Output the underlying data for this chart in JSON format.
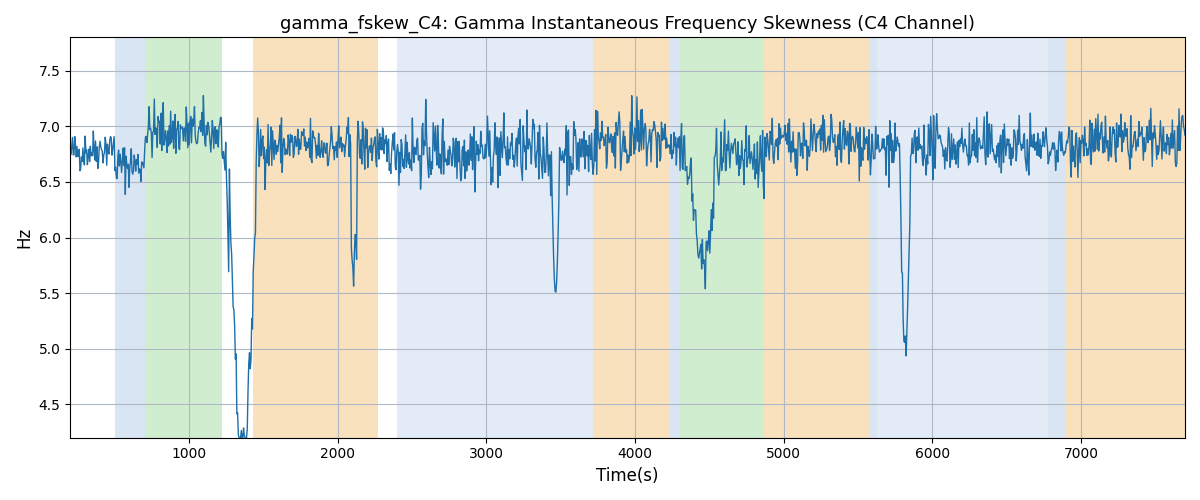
{
  "title": "gamma_fskew_C4: Gamma Instantaneous Frequency Skewness (C4 Channel)",
  "xlabel": "Time(s)",
  "ylabel": "Hz",
  "xlim": [
    200,
    7700
  ],
  "ylim": [
    4.2,
    7.8
  ],
  "yticks": [
    4.5,
    5.0,
    5.5,
    6.0,
    6.5,
    7.0,
    7.5
  ],
  "xticks": [
    1000,
    2000,
    3000,
    4000,
    5000,
    6000,
    7000
  ],
  "bg_bands": [
    {
      "xmin": 500,
      "xmax": 700,
      "color": "#aec6e8",
      "alpha": 0.45
    },
    {
      "xmin": 700,
      "xmax": 1220,
      "color": "#98d898",
      "alpha": 0.45
    },
    {
      "xmin": 1430,
      "xmax": 2270,
      "color": "#f5c98a",
      "alpha": 0.55
    },
    {
      "xmin": 2400,
      "xmax": 3720,
      "color": "#aec6e8",
      "alpha": 0.35
    },
    {
      "xmin": 3720,
      "xmax": 4230,
      "color": "#f5c98a",
      "alpha": 0.55
    },
    {
      "xmin": 4300,
      "xmax": 4870,
      "color": "#98d898",
      "alpha": 0.45
    },
    {
      "xmin": 4870,
      "xmax": 5580,
      "color": "#f5c98a",
      "alpha": 0.55
    },
    {
      "xmin": 5630,
      "xmax": 6780,
      "color": "#aec6e8",
      "alpha": 0.35
    },
    {
      "xmin": 6900,
      "xmax": 7700,
      "color": "#f5c98a",
      "alpha": 0.55
    }
  ],
  "bg_bands_thin": [
    {
      "xmin": 4230,
      "xmax": 4300,
      "color": "#aec6e8",
      "alpha": 0.45
    },
    {
      "xmin": 5580,
      "xmax": 5630,
      "color": "#aec6e8",
      "alpha": 0.45
    },
    {
      "xmin": 6780,
      "xmax": 6900,
      "color": "#aec6e8",
      "alpha": 0.45
    }
  ],
  "line_color": "#1f6fa8",
  "line_width": 1.0,
  "grid_color": "#b0b8c8",
  "bg_color": "#ffffff",
  "seed": 42,
  "n_points": 1500,
  "time_start": 200,
  "time_end": 7700
}
